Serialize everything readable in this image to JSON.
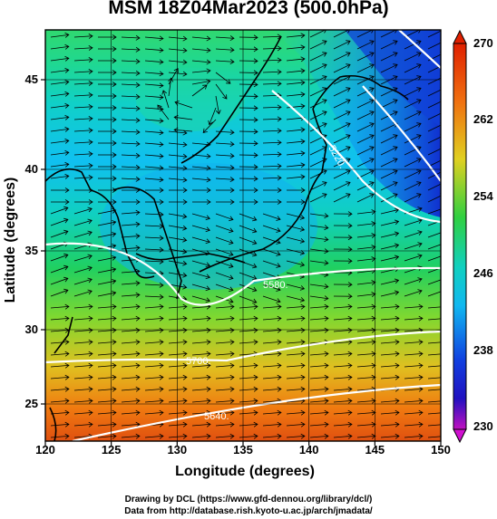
{
  "title": "MSM 18Z04Mar2023 (500.0hPa)",
  "x_axis": {
    "label": "Longitude (degrees)",
    "ticks": [
      "120",
      "125",
      "130",
      "135",
      "140",
      "145",
      "150"
    ]
  },
  "y_axis": {
    "label": "Latitude  (degrees)",
    "ticks": [
      "45",
      "40",
      "35",
      "30",
      "25"
    ]
  },
  "colorbar": {
    "ticks": [
      "270",
      "262",
      "254",
      "246",
      "238",
      "230"
    ]
  },
  "contours": [
    {
      "label": "5700.",
      "lat": 28.0
    },
    {
      "label": "5580.",
      "lat": 33.5
    },
    {
      "label": "5640.",
      "lat": 25.0
    },
    {
      "label": "5220.",
      "lat": 41.0
    }
  ],
  "credits": {
    "line1": "Drawing by DCL (https://www.gfd-dennou.org/library/dcl/)",
    "line2": "Data from http://database.rish.kyoto-u.ac.jp/arch/jmadata/"
  },
  "colors": {
    "warm": "#e06010",
    "mid": "#20d040",
    "cool": "#10c8f0",
    "cold": "#1040e0"
  }
}
